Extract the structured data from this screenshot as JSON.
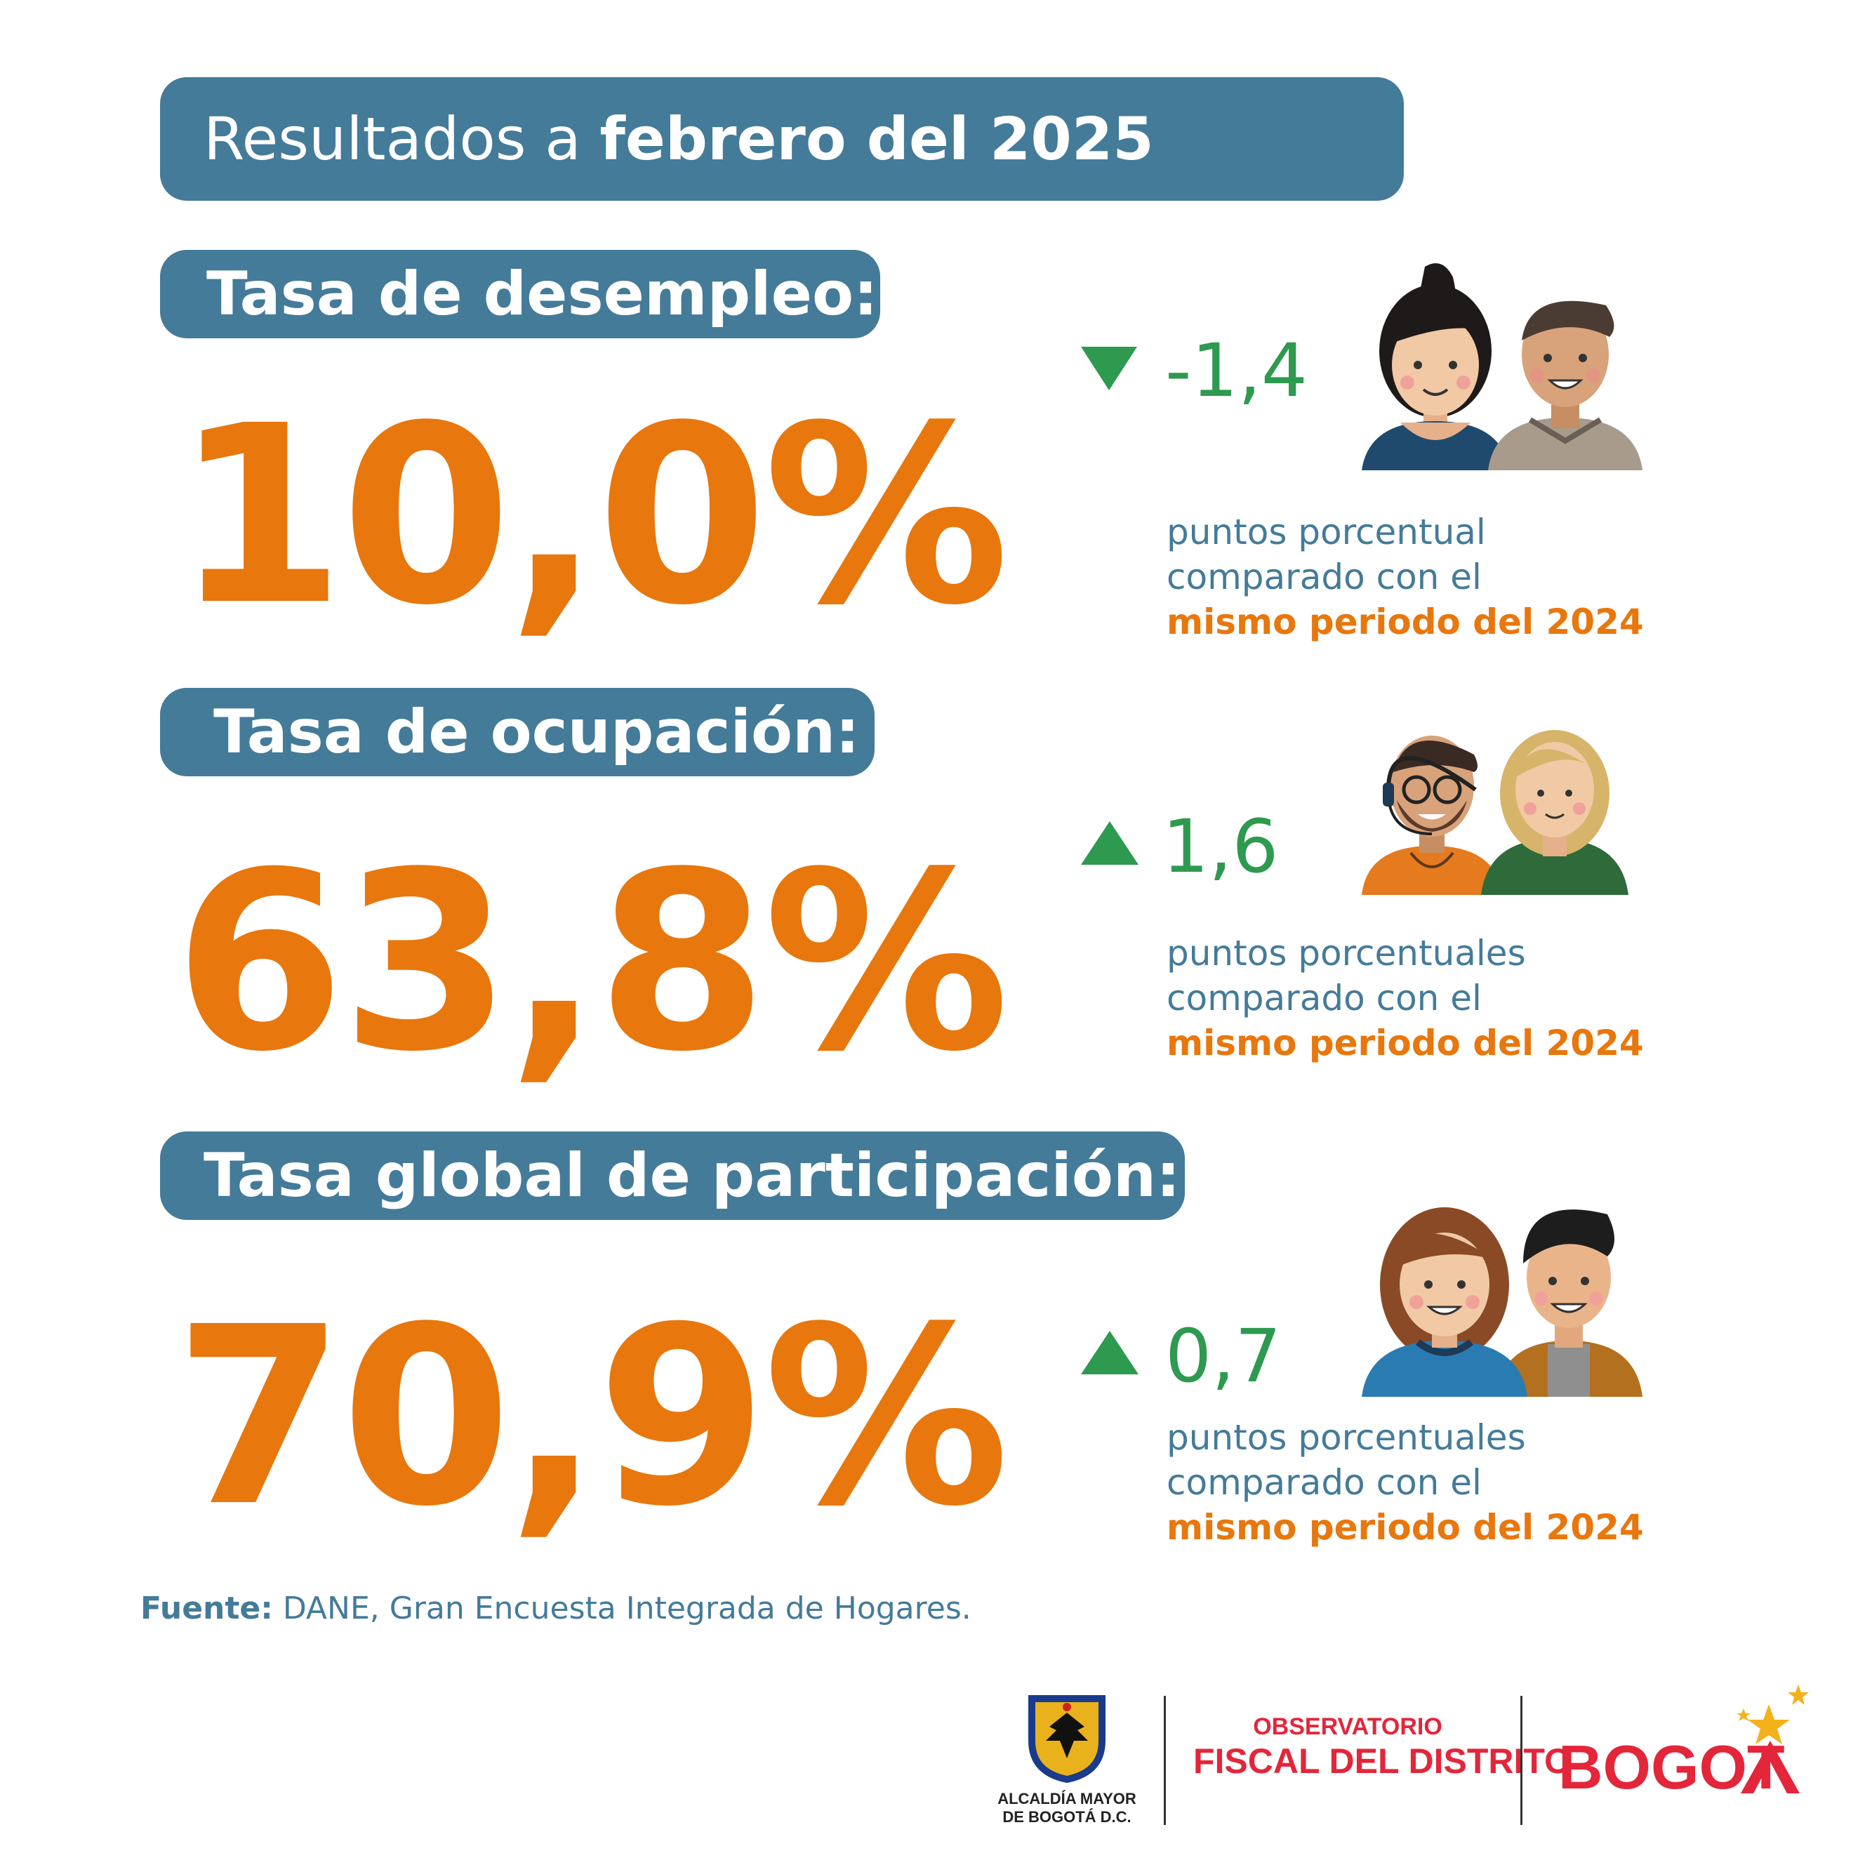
{
  "header": {
    "title_light": "Resultados a",
    "title_bold": "febrero del 2025"
  },
  "indicators": [
    {
      "label": "Tasa de desempleo:",
      "value": "10,0%",
      "direction": "down",
      "delta": "-1,4",
      "note_line1": "puntos porcentual",
      "note_line2": "comparado con el",
      "note_highlight": "mismo periodo del 2024"
    },
    {
      "label": "Tasa de ocupación:",
      "value": "63,8%",
      "direction": "up",
      "delta": "1,6",
      "note_line1": "puntos porcentuales",
      "note_line2": "comparado con el",
      "note_highlight": "mismo periodo del 2024"
    },
    {
      "label": "Tasa global de participación:",
      "value": "70,9%",
      "direction": "up",
      "delta": "0,7",
      "note_line1": "puntos porcentuales",
      "note_line2": "comparado con el",
      "note_highlight": "mismo periodo del 2024"
    }
  ],
  "source": {
    "label": "Fuente:",
    "text": "DANE, Gran Encuesta Integrada de Hogares."
  },
  "footer": {
    "alcaldia_line1": "ALCALDÍA MAYOR",
    "alcaldia_line2": "DE BOGOTÁ D.C.",
    "observatorio_line1": "OBSERVATORIO",
    "observatorio_line2": "FISCAL DEL DISTRITO",
    "bogota": "BOGOT"
  },
  "colors": {
    "banner": "#447b99",
    "value": "#e8770d",
    "delta": "#2e9a4f",
    "logo_red": "#e3263a"
  }
}
